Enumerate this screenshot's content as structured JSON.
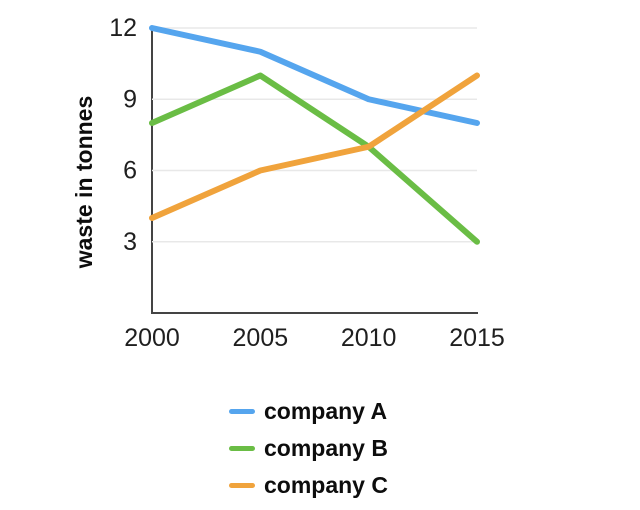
{
  "chart_data": {
    "type": "line",
    "title": "",
    "xlabel": "",
    "ylabel": "waste in tonnes",
    "x": [
      2000,
      2005,
      2010,
      2015
    ],
    "x_tick_labels": [
      "2000",
      "2005",
      "2010",
      "2015"
    ],
    "y_ticks": [
      3,
      6,
      9,
      12
    ],
    "ylim": [
      0,
      12
    ],
    "grid": "horizontal",
    "legend_position": "bottom-center",
    "series": [
      {
        "name": "company A",
        "color": "#55a5ee",
        "values": [
          12,
          11,
          9,
          8
        ]
      },
      {
        "name": "company B",
        "color": "#6abd45",
        "values": [
          8,
          10,
          7,
          3
        ]
      },
      {
        "name": "company C",
        "color": "#f0a33c",
        "values": [
          4,
          6,
          7,
          10
        ]
      }
    ],
    "colors": {
      "axis": "#444444",
      "grid": "#e8e8e8",
      "text": "#1f1f1f",
      "background": "#ffffff"
    }
  }
}
